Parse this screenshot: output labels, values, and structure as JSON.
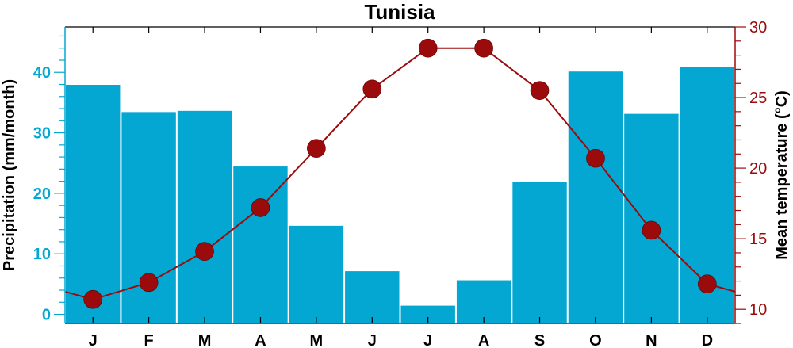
{
  "chart_data": {
    "type": "bar+line",
    "title": "Tunisia",
    "categories": [
      "J",
      "F",
      "M",
      "A",
      "M",
      "J",
      "J",
      "A",
      "S",
      "O",
      "N",
      "D"
    ],
    "xlabel": "",
    "y_left": {
      "label": "Precipitation (mm/month)",
      "ylim": [
        -1.5,
        47.5
      ],
      "ticks": [
        0,
        10,
        20,
        30,
        40
      ],
      "minor_step": 2,
      "color": "#03a7d1"
    },
    "y_right": {
      "label": "Mean temperature (°C)",
      "ylim": [
        9.0,
        30.0
      ],
      "ticks": [
        10,
        15,
        20,
        25,
        30
      ],
      "minor_step": 1,
      "color": "#9b0b0b"
    },
    "series": [
      {
        "name": "Precipitation (mm/month)",
        "type": "bar",
        "axis": "left",
        "values": [
          38.0,
          33.5,
          33.7,
          24.5,
          14.7,
          7.2,
          1.5,
          5.7,
          22.0,
          40.2,
          33.2,
          41.0
        ]
      },
      {
        "name": "Mean temperature (°C)",
        "type": "line",
        "axis": "right",
        "values": [
          10.7,
          11.9,
          14.1,
          17.2,
          21.4,
          25.6,
          28.5,
          28.5,
          25.5,
          20.7,
          15.6,
          11.8
        ]
      }
    ],
    "grid": false,
    "legend": "none"
  }
}
